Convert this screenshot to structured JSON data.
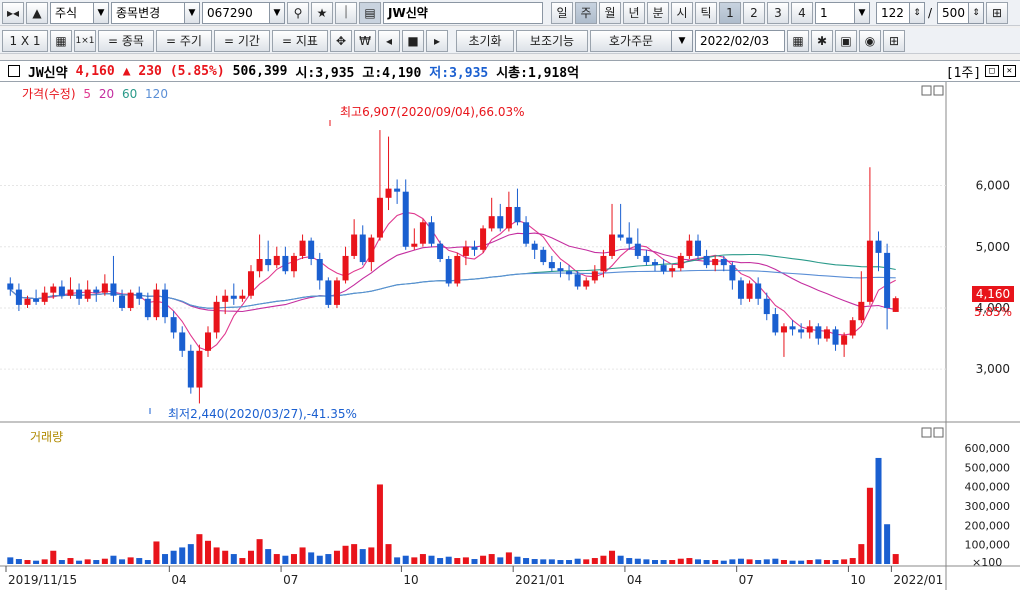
{
  "toolbar1": {
    "menu_label": "▸◂",
    "up_label": "▲",
    "market": "주식",
    "change_label": "종목변경",
    "code": "067290",
    "name_label": "JW신약",
    "periods": [
      "일",
      "주",
      "월",
      "년",
      "분",
      "시",
      "틱"
    ],
    "pages": [
      "1",
      "2",
      "3",
      "4"
    ],
    "page_field": "1",
    "count": "122",
    "slash": "/",
    "total": "500"
  },
  "toolbar2": {
    "layout": "1 X 1",
    "compare_label": "1×1",
    "indicator_buttons": [
      "= 종목",
      "= 주기",
      "= 기간",
      "= 지표"
    ],
    "reset_label": "초기화",
    "aux_label": "보조기능",
    "order_label": "호가주문",
    "date": "2022/02/03"
  },
  "info": {
    "name": "JW신약",
    "price": "4,160",
    "change": "▲ 230",
    "change_pct": "(5.85%)",
    "volume": "506,399",
    "open": "시:3,935",
    "high": "고:4,190",
    "low": "저:3,935",
    "mcap": "시총:1,918억",
    "period_tag": "[1주]"
  },
  "price_panel": {
    "legend": [
      "가격(수정)",
      "5",
      "20",
      "60",
      "120"
    ],
    "high_note": "최고6,907(2020/09/04),66.03%",
    "low_note": "최저2,440(2020/03/27),-41.35%",
    "current_label": "4,160",
    "current_pct": "5.85%"
  },
  "volume_panel": {
    "legend": "거래량",
    "unit": "×100"
  },
  "colors": {
    "up": "#e8141b",
    "down": "#1a5fd0",
    "ma5": "#e0398f",
    "ma20": "#c42ea0",
    "ma60": "#2a9a8a",
    "ma120": "#5b8fd6"
  },
  "chart_data": {
    "type": "candlestick",
    "x_ticks": [
      "2019/11/15",
      "04",
      "07",
      "10",
      "2021/01",
      "04",
      "07",
      "10",
      "2022/01"
    ],
    "price_ticks": [
      3000,
      4000,
      5000,
      6000
    ],
    "volume_ticks": [
      "100,000",
      "200,000",
      "300,000",
      "400,000",
      "500,000",
      "600,000"
    ],
    "ylim": [
      2300,
      7300
    ],
    "candles": [
      [
        4400,
        4300,
        4500,
        4200,
        20
      ],
      [
        4300,
        4050,
        4400,
        3950,
        15
      ],
      [
        4050,
        4150,
        4200,
        4000,
        12
      ],
      [
        4150,
        4100,
        4300,
        4050,
        10
      ],
      [
        4100,
        4250,
        4350,
        4050,
        14
      ],
      [
        4250,
        4350,
        4400,
        4150,
        40
      ],
      [
        4350,
        4200,
        4450,
        4150,
        12
      ],
      [
        4200,
        4300,
        4500,
        4150,
        18
      ],
      [
        4300,
        4150,
        4400,
        4050,
        10
      ],
      [
        4150,
        4300,
        4450,
        4100,
        14
      ],
      [
        4300,
        4250,
        4350,
        4100,
        12
      ],
      [
        4250,
        4400,
        4550,
        4200,
        16
      ],
      [
        4400,
        4200,
        4850,
        4100,
        25
      ],
      [
        4200,
        4000,
        4300,
        3950,
        14
      ],
      [
        4000,
        4250,
        4300,
        3950,
        20
      ],
      [
        4250,
        4150,
        4350,
        4050,
        18
      ],
      [
        4150,
        3850,
        4250,
        3800,
        12
      ],
      [
        3850,
        4300,
        4400,
        3800,
        68
      ],
      [
        4300,
        3850,
        4400,
        3750,
        30
      ],
      [
        3850,
        3600,
        3950,
        3500,
        40
      ],
      [
        3600,
        3300,
        3700,
        3200,
        50
      ],
      [
        3300,
        2700,
        3400,
        2600,
        60
      ],
      [
        2700,
        3300,
        3400,
        2440,
        90
      ],
      [
        3300,
        3600,
        3700,
        3200,
        70
      ],
      [
        3600,
        4100,
        4200,
        3500,
        50
      ],
      [
        4100,
        4200,
        4300,
        3900,
        40
      ],
      [
        4200,
        4150,
        4400,
        4050,
        30
      ],
      [
        4150,
        4200,
        4300,
        4100,
        18
      ],
      [
        4200,
        4600,
        4700,
        4150,
        40
      ],
      [
        4600,
        4800,
        5200,
        4500,
        75
      ],
      [
        4800,
        4700,
        5100,
        4600,
        45
      ],
      [
        4700,
        4850,
        5000,
        4650,
        30
      ],
      [
        4850,
        4600,
        5000,
        4550,
        25
      ],
      [
        4600,
        4850,
        4900,
        4500,
        30
      ],
      [
        4850,
        5100,
        5200,
        4800,
        50
      ],
      [
        5100,
        4800,
        5150,
        4700,
        35
      ],
      [
        4800,
        4450,
        4900,
        4300,
        25
      ],
      [
        4450,
        4050,
        4500,
        4000,
        30
      ],
      [
        4050,
        4450,
        4500,
        4000,
        40
      ],
      [
        4450,
        4850,
        5000,
        4400,
        55
      ],
      [
        4850,
        5200,
        5450,
        4800,
        60
      ],
      [
        5200,
        4750,
        5350,
        4700,
        45
      ],
      [
        4750,
        5150,
        5200,
        4600,
        50
      ],
      [
        5150,
        5800,
        6907,
        5100,
        240
      ],
      [
        5800,
        5950,
        6800,
        5600,
        60
      ],
      [
        5950,
        5900,
        6100,
        5700,
        20
      ],
      [
        5900,
        5000,
        6100,
        4950,
        25
      ],
      [
        5000,
        5050,
        5300,
        4950,
        20
      ],
      [
        5050,
        5400,
        5450,
        5000,
        30
      ],
      [
        5400,
        5050,
        5500,
        5000,
        25
      ],
      [
        5050,
        4800,
        5100,
        4750,
        18
      ],
      [
        4800,
        4400,
        4850,
        4350,
        22
      ],
      [
        4400,
        4850,
        4900,
        4350,
        18
      ],
      [
        4850,
        5000,
        5100,
        4700,
        20
      ],
      [
        5000,
        4950,
        5100,
        4850,
        15
      ],
      [
        4950,
        5300,
        5350,
        4900,
        25
      ],
      [
        5300,
        5500,
        5800,
        5250,
        30
      ],
      [
        5500,
        5300,
        5700,
        5250,
        20
      ],
      [
        5300,
        5650,
        5900,
        5250,
        35
      ],
      [
        5650,
        5400,
        5950,
        5350,
        22
      ],
      [
        5400,
        5050,
        5500,
        5000,
        18
      ],
      [
        5050,
        4950,
        5100,
        4800,
        15
      ],
      [
        4950,
        4750,
        5000,
        4700,
        14
      ],
      [
        4750,
        4650,
        4850,
        4600,
        14
      ],
      [
        4650,
        4600,
        4750,
        4500,
        12
      ],
      [
        4600,
        4550,
        4700,
        4450,
        12
      ],
      [
        4550,
        4350,
        4600,
        4300,
        16
      ],
      [
        4350,
        4450,
        4500,
        4300,
        14
      ],
      [
        4450,
        4600,
        4700,
        4400,
        18
      ],
      [
        4600,
        4850,
        4950,
        4500,
        25
      ],
      [
        4850,
        5200,
        5700,
        4800,
        40
      ],
      [
        5200,
        5150,
        5700,
        5100,
        25
      ],
      [
        5150,
        5050,
        5400,
        4950,
        18
      ],
      [
        5050,
        4850,
        5300,
        4800,
        16
      ],
      [
        4850,
        4750,
        4950,
        4700,
        14
      ],
      [
        4750,
        4700,
        4800,
        4600,
        12
      ],
      [
        4700,
        4600,
        4800,
        4550,
        12
      ],
      [
        4600,
        4650,
        4700,
        4500,
        12
      ],
      [
        4650,
        4850,
        4900,
        4600,
        16
      ],
      [
        4850,
        5100,
        5200,
        4800,
        18
      ],
      [
        5100,
        4850,
        5200,
        4800,
        14
      ],
      [
        4850,
        4700,
        4950,
        4650,
        12
      ],
      [
        4700,
        4800,
        4850,
        4600,
        12
      ],
      [
        4800,
        4700,
        4850,
        4600,
        10
      ],
      [
        4700,
        4450,
        4750,
        4300,
        14
      ],
      [
        4450,
        4150,
        4500,
        4050,
        16
      ],
      [
        4150,
        4400,
        4450,
        4100,
        14
      ],
      [
        4400,
        4150,
        4500,
        4050,
        12
      ],
      [
        4150,
        3900,
        4250,
        3800,
        14
      ],
      [
        3900,
        3600,
        4000,
        3550,
        16
      ],
      [
        3600,
        3700,
        3750,
        3200,
        12
      ],
      [
        3700,
        3650,
        3800,
        3550,
        10
      ],
      [
        3650,
        3600,
        3750,
        3500,
        10
      ],
      [
        3600,
        3700,
        3800,
        3500,
        12
      ],
      [
        3700,
        3500,
        3750,
        3400,
        14
      ],
      [
        3500,
        3650,
        3700,
        3450,
        12
      ],
      [
        3650,
        3400,
        3700,
        3300,
        12
      ],
      [
        3400,
        3550,
        3600,
        3200,
        14
      ],
      [
        3550,
        3800,
        3850,
        3500,
        18
      ],
      [
        3800,
        4100,
        4600,
        3750,
        60
      ],
      [
        4100,
        5100,
        6300,
        4050,
        230
      ],
      [
        5100,
        4900,
        5250,
        4600,
        320
      ],
      [
        4900,
        4000,
        5050,
        3650,
        120
      ],
      [
        3935,
        4160,
        4190,
        3935,
        30
      ]
    ]
  }
}
